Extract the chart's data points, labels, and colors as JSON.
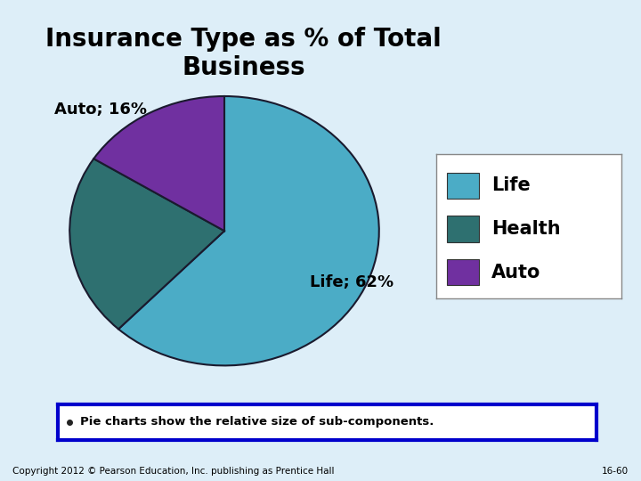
{
  "title": "Insurance Type as % of Total\nBusiness",
  "slices": [
    62,
    22,
    16
  ],
  "labels": [
    "Life",
    "Health",
    "Auto"
  ],
  "colors": [
    "#4BACC6",
    "#2E7070",
    "#7030A0"
  ],
  "startangle": 90,
  "background_color": "#DDEEF8",
  "legend_items": [
    "Life",
    "Health",
    "Auto"
  ],
  "legend_colors": [
    "#4BACC6",
    "#2E7070",
    "#7030A0"
  ],
  "footnote_text": "Pie charts show the relative size of sub-components.",
  "copyright_text": "Copyright 2012 © Pearson Education, Inc. publishing as Prentice Hall",
  "slide_number": "16-60",
  "title_fontsize": 20,
  "label_fontsize": 13,
  "legend_fontsize": 15
}
